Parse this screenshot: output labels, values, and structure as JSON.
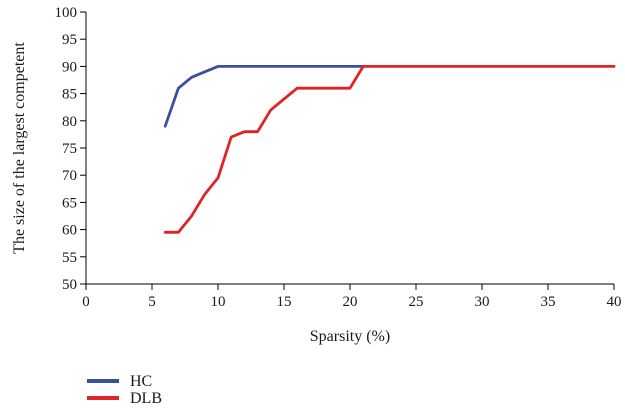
{
  "chart_data": {
    "type": "line",
    "title": "",
    "xlabel": "Sparsity (%)",
    "ylabel": "The size of the largest competent",
    "xlim": [
      0,
      40
    ],
    "ylim": [
      50,
      100
    ],
    "x_ticks": [
      0,
      5,
      10,
      15,
      20,
      25,
      30,
      35,
      40
    ],
    "y_ticks": [
      50,
      55,
      60,
      65,
      70,
      75,
      80,
      85,
      90,
      95,
      100
    ],
    "grid": false,
    "legend_position": "bottom-left",
    "series": [
      {
        "name": "HC",
        "color": "#3a4fa0",
        "x": [
          6,
          7,
          8,
          9,
          10,
          21
        ],
        "y": [
          79,
          86,
          88,
          89,
          90,
          90
        ]
      },
      {
        "name": "DLB",
        "color": "#e02424",
        "x": [
          6,
          7,
          8,
          9,
          10,
          11,
          12,
          13,
          14,
          15,
          16,
          17,
          18,
          19,
          20,
          21,
          40
        ],
        "y": [
          59.5,
          59.5,
          62.5,
          66.5,
          69.5,
          77,
          78,
          78,
          82,
          84,
          86,
          86,
          86,
          86,
          86,
          90,
          90
        ]
      }
    ]
  }
}
